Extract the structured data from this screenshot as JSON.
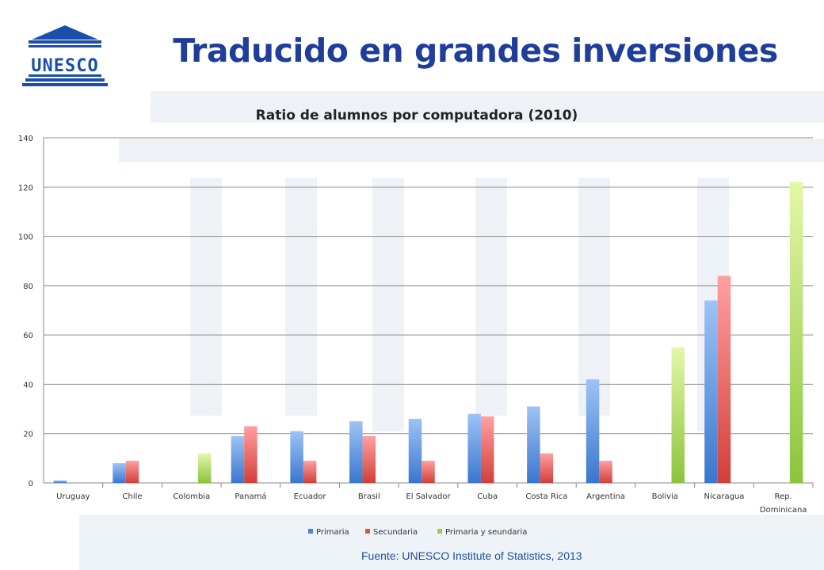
{
  "slide": {
    "title": "Traducido en grandes inversiones",
    "logo_text": "UNESCO",
    "source": "Fuente: UNESCO Institute of Statistics, 2013"
  },
  "colors": {
    "title": "#1f3d9a",
    "primaria": "#4a86d8",
    "secundaria": "#e0504a",
    "primaria_y_secundaria": "#9dcc46",
    "background": "#ffffff"
  },
  "chart_data": {
    "type": "bar",
    "title": "Ratio de alumnos por computadora (2010)",
    "xlabel": "",
    "ylabel": "",
    "ylim": [
      0,
      140
    ],
    "yticks": [
      0,
      20,
      40,
      60,
      80,
      100,
      120,
      140
    ],
    "grid": true,
    "legend_position": "bottom",
    "categories": [
      "Uruguay",
      "Chile",
      "Colombia",
      "Panamá",
      "Ecuador",
      "Brasil",
      "El Salvador",
      "Cuba",
      "Costa Rica",
      "Argentina",
      "Bolivia",
      "Nicaragua",
      "Rep. Dominicana"
    ],
    "series": [
      {
        "name": "Primaria",
        "values": [
          1,
          8,
          null,
          19,
          21,
          25,
          26,
          28,
          31,
          42,
          null,
          74,
          null
        ]
      },
      {
        "name": "Secundaria",
        "values": [
          null,
          9,
          null,
          23,
          9,
          19,
          9,
          27,
          12,
          9,
          null,
          84,
          null
        ]
      },
      {
        "name": "Primaria y seundaria",
        "values": [
          null,
          null,
          12,
          null,
          null,
          null,
          null,
          null,
          null,
          null,
          55,
          null,
          122
        ]
      }
    ]
  }
}
